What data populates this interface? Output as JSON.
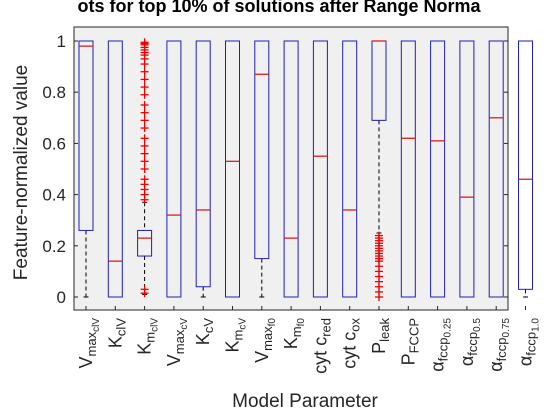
{
  "chart_data": {
    "type": "boxplot",
    "title": "ots for top 10% of solutions after Range Norma",
    "xlabel": "Model Parameter",
    "ylabel": "Feature-normalized value",
    "ylim": [
      -0.05,
      1.05
    ],
    "yticks": [
      0,
      0.2,
      0.4,
      0.6,
      0.8,
      1
    ],
    "grid": false,
    "colors": {
      "box": "#1f1fb0",
      "median": "#d62020",
      "outlier": "#ee0000",
      "whisker": "#000000",
      "axes_bg": "#f0f0f0"
    },
    "parameters": [
      {
        "label": "V_max_clV",
        "q1": 0.26,
        "median": 0.98,
        "q3": 1.0,
        "lower": 0.0,
        "upper": 1.0,
        "outliers": []
      },
      {
        "label": "K_clV",
        "q1": 0.0,
        "median": 0.14,
        "q3": 1.0,
        "lower": 0.0,
        "upper": 1.0,
        "outliers": []
      },
      {
        "label": "K_m_clV",
        "q1": 0.16,
        "median": 0.23,
        "q3": 0.26,
        "lower": 0.01,
        "upper": 0.37,
        "outliers": [
          0.015,
          0.03,
          0.38,
          0.4,
          0.42,
          0.44,
          0.46,
          0.5,
          0.53,
          0.56,
          0.59,
          0.62,
          0.66,
          0.69,
          0.72,
          0.75,
          0.79,
          0.82,
          0.85,
          0.88,
          0.91,
          0.93,
          0.945,
          0.955,
          0.965,
          0.975,
          0.985,
          0.99,
          0.995
        ]
      },
      {
        "label": "V_max_cV",
        "q1": 0.0,
        "median": 0.32,
        "q3": 1.0,
        "lower": 0.0,
        "upper": 1.0,
        "outliers": []
      },
      {
        "label": "K_cV",
        "q1": 0.04,
        "median": 0.34,
        "q3": 1.0,
        "lower": 0.0,
        "upper": 1.0,
        "outliers": []
      },
      {
        "label": "K_m_cV",
        "q1": 0.0,
        "median": 0.53,
        "q3": 1.0,
        "lower": 0.0,
        "upper": 1.0,
        "outliers": []
      },
      {
        "label": "V_max_f0",
        "q1": 0.15,
        "median": 0.87,
        "q3": 1.0,
        "lower": 0.0,
        "upper": 1.0,
        "outliers": []
      },
      {
        "label": "K_m_f0",
        "q1": 0.0,
        "median": 0.23,
        "q3": 1.0,
        "lower": 0.0,
        "upper": 1.0,
        "outliers": []
      },
      {
        "label": "cyt c_red",
        "q1": 0.0,
        "median": 0.55,
        "q3": 1.0,
        "lower": 0.0,
        "upper": 1.0,
        "outliers": []
      },
      {
        "label": "cyt c_ox",
        "q1": 0.0,
        "median": 0.34,
        "q3": 1.0,
        "lower": 0.0,
        "upper": 1.0,
        "outliers": []
      },
      {
        "label": "P_leak",
        "q1": 0.69,
        "median": 1.0,
        "q3": 1.0,
        "lower": 0.25,
        "upper": 1.0,
        "outliers": [
          0.0,
          0.02,
          0.04,
          0.06,
          0.08,
          0.1,
          0.12,
          0.14,
          0.15,
          0.16,
          0.17,
          0.18,
          0.19,
          0.2,
          0.21,
          0.22,
          0.23,
          0.24
        ]
      },
      {
        "label": "P_FCCP",
        "q1": 0.0,
        "median": 0.62,
        "q3": 1.0,
        "lower": 0.0,
        "upper": 1.0,
        "outliers": []
      },
      {
        "label": "α_fccp_0.25",
        "q1": 0.0,
        "median": 0.61,
        "q3": 1.0,
        "lower": 0.0,
        "upper": 1.0,
        "outliers": []
      },
      {
        "label": "α_fccp_0.5",
        "q1": 0.0,
        "median": 0.39,
        "q3": 1.0,
        "lower": 0.0,
        "upper": 1.0,
        "outliers": []
      },
      {
        "label": "α_fccp_0.75",
        "q1": 0.0,
        "median": 0.7,
        "q3": 1.0,
        "lower": 0.0,
        "upper": 1.0,
        "outliers": []
      },
      {
        "label": "α_fccp_1.0",
        "q1": 0.03,
        "median": 0.46,
        "q3": 1.0,
        "lower": 0.0,
        "upper": 1.0,
        "outliers": []
      }
    ],
    "tick_labels": [
      {
        "main": "V",
        "sub": "max",
        "subsub": "clV"
      },
      {
        "main": "K",
        "sub": "clV"
      },
      {
        "main": "K",
        "sub": "m",
        "subsub": "clV"
      },
      {
        "main": "V",
        "sub": "max",
        "subsub": "cV"
      },
      {
        "main": "K",
        "sub": "cV"
      },
      {
        "main": "K",
        "sub": "m",
        "subsub": "cV"
      },
      {
        "main": "V",
        "sub": "max",
        "subsub": "f0"
      },
      {
        "main": "K",
        "sub": "m",
        "subsub": "f0"
      },
      {
        "main": "cyt c",
        "sub": "red"
      },
      {
        "main": "cyt c",
        "sub": "ox"
      },
      {
        "main": "P",
        "sub": "leak"
      },
      {
        "main": "P",
        "sub": "FCCP"
      },
      {
        "main": "α",
        "sub": "fccp",
        "subsub": "0.25"
      },
      {
        "main": "α",
        "sub": "fccp",
        "subsub": "0.5"
      },
      {
        "main": "α",
        "sub": "fccp",
        "subsub": "0.75"
      },
      {
        "main": "α",
        "sub": "fccp",
        "subsub": "1.0"
      }
    ]
  }
}
